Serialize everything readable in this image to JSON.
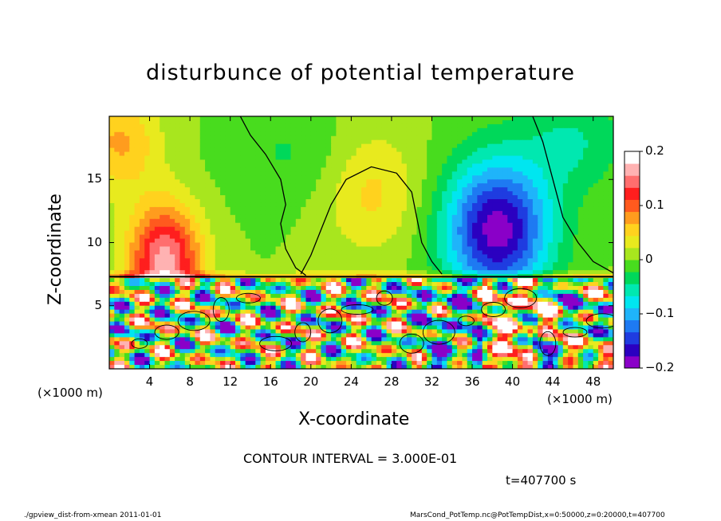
{
  "chart_data": {
    "type": "heatmap",
    "title": "disturbunce of potential temperature",
    "xlabel": "X-coordinate",
    "ylabel": "Z-coordinate",
    "x_unit_left": "(×1000 m)",
    "x_unit_right": "(×1000 m)",
    "xlim": [
      0,
      50
    ],
    "ylim": [
      0,
      20
    ],
    "x_ticks": [
      4,
      8,
      12,
      16,
      20,
      24,
      28,
      32,
      36,
      40,
      44,
      48
    ],
    "x_tick_labels": [
      "4",
      "8",
      "12",
      "16",
      "20",
      "24",
      "28",
      "32",
      "36",
      "40",
      "44",
      "48"
    ],
    "y_ticks": [
      5,
      10,
      15
    ],
    "y_tick_labels": [
      "5",
      "10",
      "15"
    ],
    "colorbar": {
      "range": [
        -0.2,
        0.2
      ],
      "tick_values": [
        0.2,
        0.1,
        0,
        -0.1,
        -0.2
      ],
      "tick_labels": [
        "0.2",
        "0.1",
        "0",
        "−0.1",
        "−0.2"
      ],
      "colors": [
        "#8a00c8",
        "#2b00c0",
        "#1f3ce0",
        "#1e7af2",
        "#1fb4fa",
        "#00e6f0",
        "#00e8b0",
        "#00d85a",
        "#48dc1e",
        "#a8e61e",
        "#e8ea1e",
        "#ffd21e",
        "#ff9c1e",
        "#ff5a1e",
        "#ff1e1e",
        "#ff6e6e",
        "#ffb2b2",
        "#ffffff"
      ]
    },
    "contour_interval_text": "CONTOUR INTERVAL = 3.000E-01",
    "time_text": "t=407700 s"
  },
  "footer": {
    "left": "./gpview_dist-from-xmean  2011-01-01",
    "right": "MarsCond_PotTemp.nc@PotTempDist,x=0:50000,z=0:20000,t=407700"
  }
}
